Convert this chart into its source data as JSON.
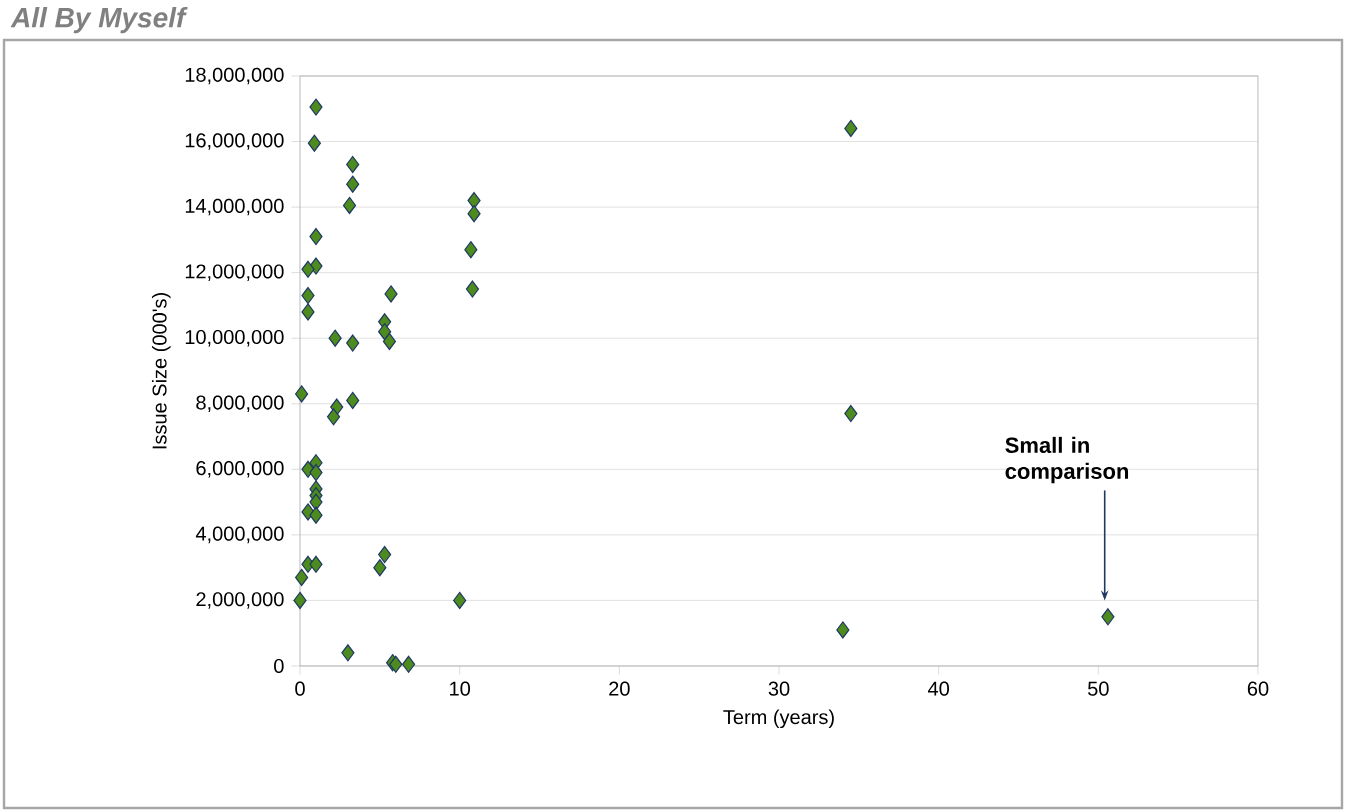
{
  "chart_data": {
    "type": "scatter",
    "title": "All By Myself",
    "xlabel": "Term (years)",
    "ylabel": "Issue Size (000's)",
    "x": [
      1.0,
      0.9,
      3.3,
      3.3,
      3.1,
      10.9,
      10.9,
      1.0,
      10.7,
      1.0,
      0.5,
      10.8,
      5.7,
      0.5,
      0.5,
      5.3,
      5.3,
      5.6,
      2.2,
      3.3,
      0.1,
      2.3,
      3.3,
      2.1,
      1.0,
      0.5,
      1.0,
      1.0,
      1.0,
      1.0,
      0.5,
      1.0,
      0.5,
      1.0,
      0.1,
      5.3,
      5.0,
      0.0,
      10.0,
      3.0,
      5.8,
      6.0,
      6.8,
      34.5,
      34.5,
      34.0,
      50.6
    ],
    "values": [
      17050000,
      15950000,
      15300000,
      14700000,
      14050000,
      14200000,
      13800000,
      13100000,
      12700000,
      12200000,
      12100000,
      11500000,
      11350000,
      11300000,
      10800000,
      10500000,
      10200000,
      9900000,
      10000000,
      9850000,
      8300000,
      7900000,
      8100000,
      7600000,
      6200000,
      6000000,
      5900000,
      5400000,
      5200000,
      5000000,
      4700000,
      4600000,
      3100000,
      3100000,
      2700000,
      3400000,
      3000000,
      2000000,
      2000000,
      400000,
      100000,
      50000,
      50000,
      16400000,
      7700000,
      1100000,
      1500000
    ],
    "color": "#4e8b1e",
    "marker": "diamond",
    "grid": "y",
    "xlim": [
      0,
      60
    ],
    "xticks": [
      0,
      10,
      20,
      30,
      40,
      50,
      60
    ],
    "ylim": [
      0,
      18000000
    ],
    "yticks": [
      0,
      {
        "value": 2000000,
        "label": "2,000,000"
      },
      {
        "value": 4000000,
        "label": "4,000,000"
      },
      {
        "value": 6000000,
        "label": "6,000,000"
      },
      {
        "value": 8000000,
        "label": "8,000,000"
      },
      {
        "value": 10000000,
        "label": "10,000,000"
      },
      {
        "value": 12000000,
        "label": "12,000,000"
      },
      {
        "value": 14000000,
        "label": "14,000,000"
      },
      {
        "value": 16000000,
        "label": "16,000,000"
      },
      {
        "value": 18000000,
        "label": "18,000,000"
      }
    ],
    "annotations": [
      {
        "text": "Small in comparison",
        "x": 50.4,
        "y": 2000000
      }
    ]
  }
}
